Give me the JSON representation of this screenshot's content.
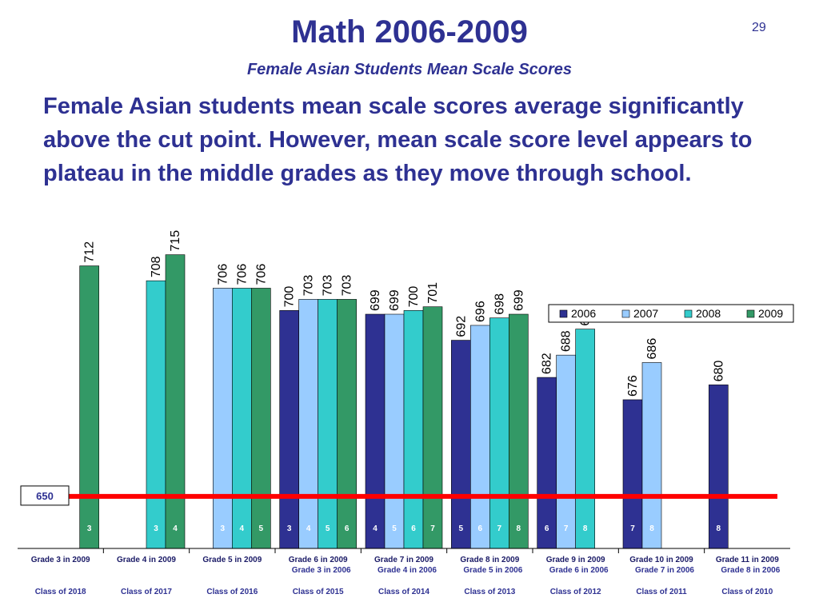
{
  "slide": {
    "title": "Math 2006-2009",
    "subtitle": "Female Asian Students Mean Scale Scores",
    "page_number": "29",
    "body": "Female Asian students mean scale scores average significantly above the cut point. However, mean scale score level appears to plateau in the middle grades as they move through school."
  },
  "colors": {
    "2006": "#2e3192",
    "2007": "#99ccff",
    "2008": "#33cccc",
    "2009": "#339966",
    "cut_line": "#ff0000",
    "text": "#2e3192"
  },
  "chart_data": {
    "type": "bar",
    "series_names": [
      "2006",
      "2007",
      "2008",
      "2009"
    ],
    "ylim": [
      636,
      719
    ],
    "cut_point": {
      "value": 650,
      "label": "650"
    },
    "legend_position": "top-right",
    "grid": false,
    "groups": [
      {
        "category": "Grade 3 in 2009",
        "sub": "",
        "class": "Class of 2018",
        "bars": [
          {
            "series": "2009",
            "value": 712,
            "grade": "3"
          }
        ]
      },
      {
        "category": "Grade 4 in 2009",
        "sub": "",
        "class": "Class of 2017",
        "bars": [
          {
            "series": "2008",
            "value": 708,
            "grade": "3"
          },
          {
            "series": "2009",
            "value": 715,
            "grade": "4"
          }
        ]
      },
      {
        "category": "Grade 5 in 2009",
        "sub": "",
        "class": "Class of 2016",
        "bars": [
          {
            "series": "2007",
            "value": 706,
            "grade": "3"
          },
          {
            "series": "2008",
            "value": 706,
            "grade": "4"
          },
          {
            "series": "2009",
            "value": 706,
            "grade": "5"
          }
        ]
      },
      {
        "category": "Grade 6 in 2009",
        "sub": "Grade 3 in 2006",
        "class": "Class of 2015",
        "bars": [
          {
            "series": "2006",
            "value": 700,
            "grade": "3"
          },
          {
            "series": "2007",
            "value": 703,
            "grade": "4"
          },
          {
            "series": "2008",
            "value": 703,
            "grade": "5"
          },
          {
            "series": "2009",
            "value": 703,
            "grade": "6"
          }
        ]
      },
      {
        "category": "Grade 7 in 2009",
        "sub": "Grade 4 in 2006",
        "class": "Class of 2014",
        "bars": [
          {
            "series": "2006",
            "value": 699,
            "grade": "4"
          },
          {
            "series": "2007",
            "value": 699,
            "grade": "5"
          },
          {
            "series": "2008",
            "value": 700,
            "grade": "6"
          },
          {
            "series": "2009",
            "value": 701,
            "grade": "7"
          }
        ]
      },
      {
        "category": "Grade 8 in 2009",
        "sub": "Grade 5 in 2006",
        "class": "Class of 2013",
        "bars": [
          {
            "series": "2006",
            "value": 692,
            "grade": "5"
          },
          {
            "series": "2007",
            "value": 696,
            "grade": "6"
          },
          {
            "series": "2008",
            "value": 698,
            "grade": "7"
          },
          {
            "series": "2009",
            "value": 699,
            "grade": "8"
          }
        ]
      },
      {
        "category": "Grade 9 in 2009",
        "sub": "Grade 6 in 2006",
        "class": "Class of 2012",
        "bars": [
          {
            "series": "2006",
            "value": 682,
            "grade": "6"
          },
          {
            "series": "2007",
            "value": 688,
            "grade": "7"
          },
          {
            "series": "2008",
            "value": 695,
            "grade": "8"
          }
        ]
      },
      {
        "category": "Grade 10 in 2009",
        "sub": "Grade 7 in 2006",
        "class": "Class of 2011",
        "bars": [
          {
            "series": "2006",
            "value": 676,
            "grade": "7"
          },
          {
            "series": "2007",
            "value": 686,
            "grade": "8"
          }
        ]
      },
      {
        "category": "Grade 11 in 2009",
        "sub": "Grade 8 in 2006",
        "class": "Class of 2010",
        "bars": [
          {
            "series": "2006",
            "value": 680,
            "grade": "8"
          }
        ]
      }
    ]
  }
}
